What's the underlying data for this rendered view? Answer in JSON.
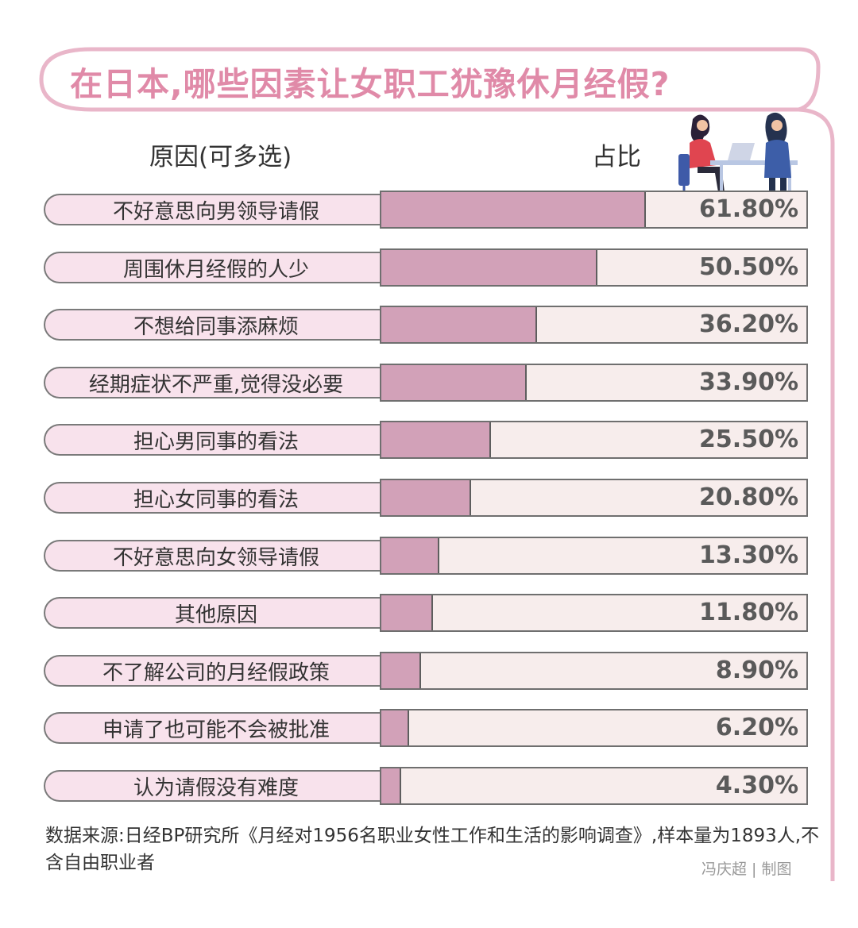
{
  "title": "在日本,哪些因素让女职工犹豫休月经假?",
  "headers": {
    "reason": "原因(可多选)",
    "share": "占比"
  },
  "colors": {
    "frame": "#e9b6c9",
    "title": "#e08aa8",
    "label_bg": "#f8e2ec",
    "bar_fill": "#d2a1b8",
    "bar_track": "#f7edec"
  },
  "chart_data": {
    "type": "bar",
    "orientation": "horizontal",
    "categories": [
      "不好意思向男领导请假",
      "周围休月经假的人少",
      "不想给同事添麻烦",
      "经期症状不严重,觉得没必要",
      "担心男同事的看法",
      "担心女同事的看法",
      "不好意思向女领导请假",
      "其他原因",
      "不了解公司的月经假政策",
      "申请了也可能不会被批准",
      "认为请假没有难度"
    ],
    "values": [
      61.8,
      50.5,
      36.2,
      33.9,
      25.5,
      20.8,
      13.3,
      11.8,
      8.9,
      6.2,
      4.3
    ],
    "value_labels": [
      "61.80%",
      "50.50%",
      "36.20%",
      "33.90%",
      "25.50%",
      "20.80%",
      "13.30%",
      "11.80%",
      "8.90%",
      "6.20%",
      "4.30%"
    ],
    "xlim": [
      0,
      100
    ]
  },
  "source_text": "数据来源:日经BP研究所《月经对1956名职业女性工作和生活的影响调查》,样本量为1893人,不含自由职业者",
  "credit": "冯庆超 | 制图"
}
